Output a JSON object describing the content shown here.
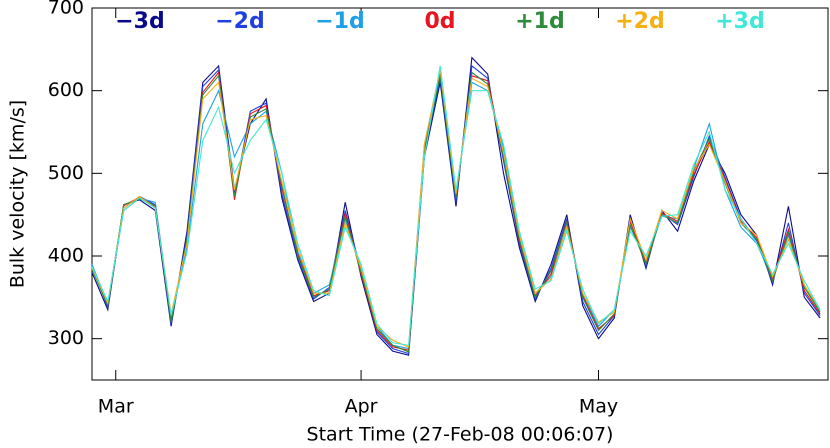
{
  "chart_data": {
    "type": "line",
    "xlabel": "Start Time (27-Feb-08 00:06:07)",
    "ylabel": "Bulk velocity [km/s]",
    "x": [
      0,
      2,
      4,
      6,
      8,
      10,
      12,
      14,
      16,
      18,
      20,
      22,
      24,
      26,
      28,
      30,
      32,
      34,
      36,
      38,
      40,
      42,
      44,
      46,
      48,
      50,
      52,
      54,
      56,
      58,
      60,
      62,
      64,
      66,
      68,
      70,
      72,
      74,
      76,
      78,
      80,
      82,
      84,
      86,
      88,
      90,
      92
    ],
    "xlim": [
      0,
      93
    ],
    "xticks": [
      {
        "value": 3,
        "label": "Mar"
      },
      {
        "value": 34,
        "label": "Apr"
      },
      {
        "value": 64,
        "label": "May"
      }
    ],
    "ylim": [
      250,
      700
    ],
    "yticks": [
      300,
      400,
      500,
      600,
      700
    ],
    "series": [
      {
        "name": "−3d",
        "color": "#0a0a8c",
        "values": [
          380,
          335,
          462,
          468,
          455,
          315,
          430,
          610,
          630,
          480,
          560,
          590,
          470,
          395,
          345,
          355,
          465,
          375,
          305,
          285,
          280,
          520,
          610,
          460,
          640,
          620,
          500,
          410,
          345,
          390,
          450,
          340,
          300,
          325,
          450,
          385,
          455,
          430,
          490,
          535,
          500,
          450,
          425,
          365,
          460,
          350,
          325
        ]
      },
      {
        "name": "−2d",
        "color": "#2040e0",
        "values": [
          388,
          338,
          458,
          472,
          462,
          318,
          425,
          605,
          625,
          475,
          575,
          585,
          475,
          398,
          348,
          362,
          455,
          382,
          308,
          288,
          282,
          525,
          615,
          465,
          630,
          615,
          515,
          415,
          348,
          385,
          445,
          345,
          305,
          328,
          445,
          388,
          452,
          438,
          495,
          545,
          495,
          445,
          418,
          368,
          440,
          355,
          328
        ]
      },
      {
        "name": "−1d",
        "color": "#1ea0e8",
        "values": [
          390,
          342,
          455,
          470,
          465,
          325,
          410,
          560,
          600,
          520,
          560,
          575,
          500,
          405,
          355,
          365,
          445,
          385,
          315,
          292,
          288,
          535,
          625,
          475,
          610,
          600,
          530,
          425,
          355,
          375,
          435,
          355,
          315,
          335,
          435,
          395,
          448,
          445,
          505,
          560,
          480,
          435,
          415,
          372,
          425,
          365,
          332
        ]
      },
      {
        "name": "0d",
        "color": "#e81420",
        "values": [
          386,
          341,
          461,
          471,
          460,
          322,
          418,
          598,
          622,
          468,
          572,
          582,
          482,
          402,
          352,
          358,
          452,
          378,
          310,
          290,
          286,
          530,
          622,
          472,
          618,
          612,
          522,
          418,
          352,
          378,
          442,
          352,
          312,
          328,
          442,
          392,
          452,
          442,
          498,
          538,
          492,
          442,
          422,
          372,
          432,
          358,
          330
        ]
      },
      {
        "name": "+1d",
        "color": "#2e8b3c",
        "values": [
          384,
          340,
          462,
          469,
          461,
          320,
          420,
          595,
          618,
          472,
          568,
          578,
          485,
          400,
          350,
          360,
          448,
          380,
          312,
          292,
          284,
          528,
          618,
          470,
          622,
          608,
          520,
          420,
          350,
          382,
          440,
          350,
          310,
          330,
          438,
          390,
          450,
          440,
          502,
          542,
          488,
          440,
          420,
          370,
          428,
          362,
          332
        ]
      },
      {
        "name": "+2d",
        "color": "#f5b014",
        "values": [
          386,
          343,
          458,
          472,
          458,
          330,
          415,
          590,
          610,
          480,
          565,
          570,
          490,
          410,
          355,
          355,
          440,
          385,
          315,
          298,
          290,
          535,
          625,
          475,
          615,
          605,
          525,
          425,
          355,
          372,
          435,
          355,
          320,
          332,
          445,
          395,
          455,
          445,
          505,
          535,
          490,
          440,
          425,
          375,
          420,
          365,
          335
        ]
      },
      {
        "name": "+3d",
        "color": "#40e8d8",
        "values": [
          387,
          345,
          455,
          470,
          458,
          328,
          405,
          540,
          580,
          500,
          540,
          565,
          500,
          415,
          358,
          352,
          435,
          390,
          318,
          295,
          292,
          520,
          630,
          480,
          600,
          600,
          535,
          430,
          360,
          370,
          430,
          360,
          318,
          335,
          430,
          400,
          448,
          450,
          510,
          550,
          480,
          445,
          415,
          378,
          415,
          370,
          335
        ]
      }
    ]
  }
}
